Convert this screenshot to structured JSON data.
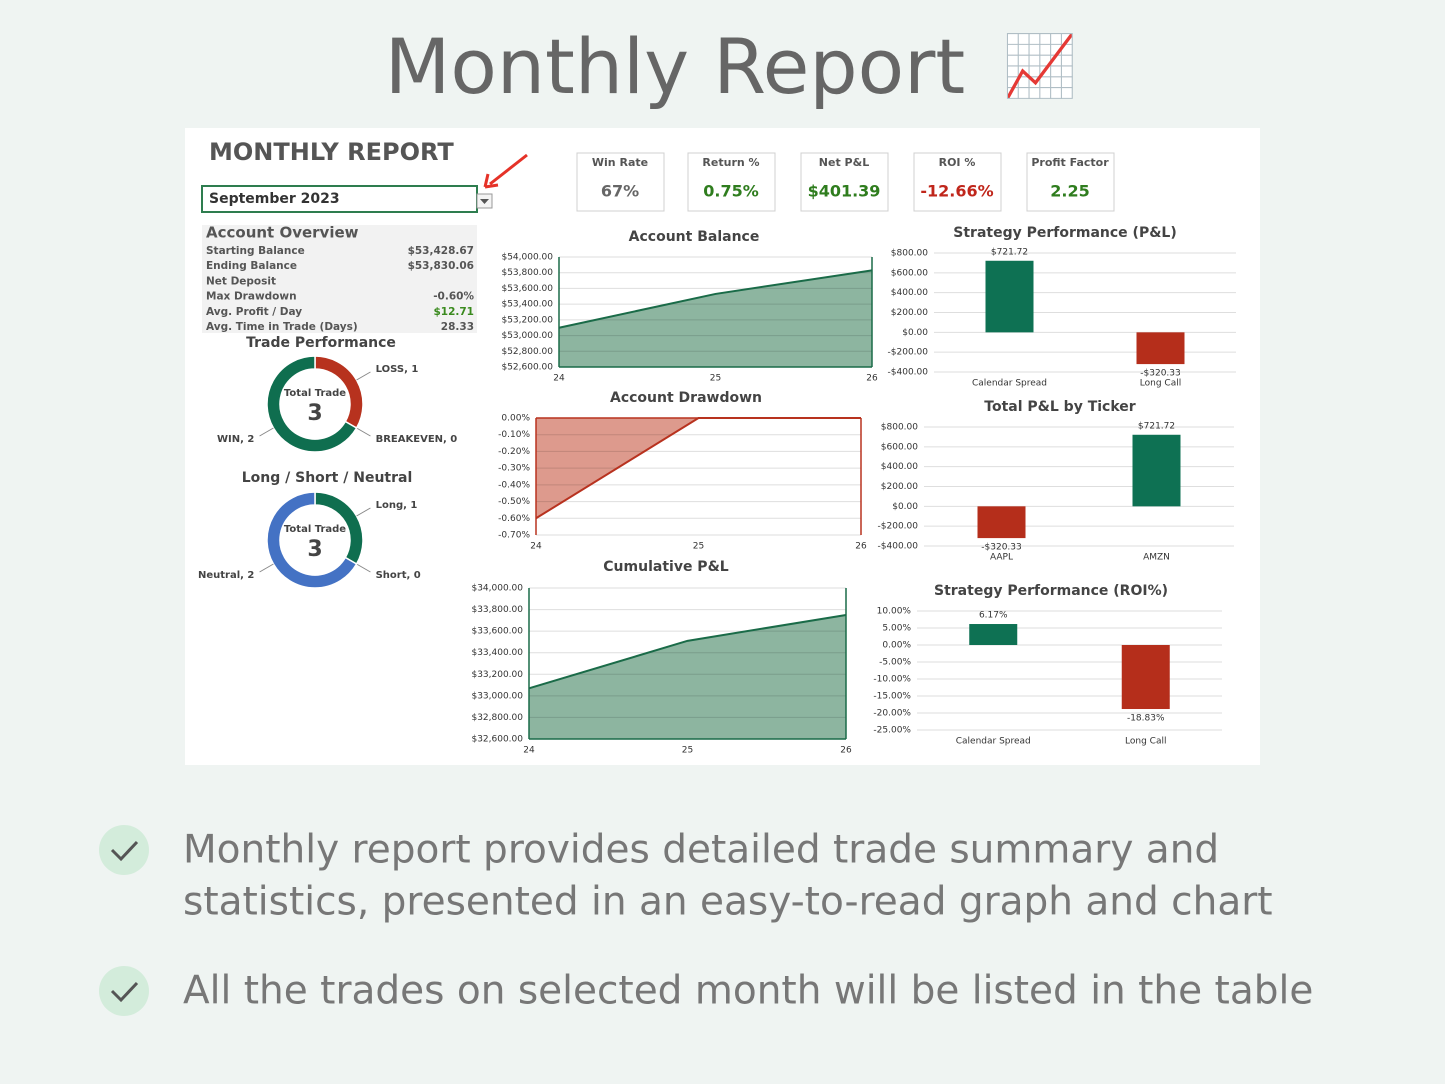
{
  "header": {
    "title": "Monthly Report",
    "icon": "📈"
  },
  "report": {
    "title": "MONTHLY REPORT",
    "month": "September 2023"
  },
  "kpis": [
    {
      "label": "Win Rate",
      "value": "67%",
      "color": "#666666"
    },
    {
      "label": "Return %",
      "value": "0.75%",
      "color": "#2f7d1e"
    },
    {
      "label": "Net P&L",
      "value": "$401.39",
      "color": "#2f7d1e"
    },
    {
      "label": "ROI %",
      "value": "-12.66%",
      "color": "#c0261b"
    },
    {
      "label": "Profit Factor",
      "value": "2.25",
      "color": "#2f7d1e"
    }
  ],
  "overview": {
    "title": "Account Overview",
    "rows": [
      {
        "label": "Starting Balance",
        "value": "$53,428.67"
      },
      {
        "label": "Ending Balance",
        "value": "$53,830.06"
      },
      {
        "label": "Net Deposit"
      },
      {
        "label": "Max Drawdown",
        "value": "-0.60%"
      },
      {
        "label": "Avg. Profit / Day",
        "value": "$12.71",
        "color": "#3a8a1e"
      },
      {
        "label": "Avg. Time in Trade (Days)",
        "value": "28.33"
      }
    ]
  },
  "chart_data": [
    {
      "type": "donut",
      "title": "Trade Performance",
      "center_label": "Total Trade",
      "total": 3,
      "categories": [
        "LOSS",
        "BREAKEVEN",
        "WIN"
      ],
      "values": [
        1,
        0,
        2
      ],
      "value_labels": [
        "LOSS, 1",
        "BREAKEVEN, 0",
        "WIN, 2"
      ],
      "colors": [
        "#b7321e",
        "#888888",
        "#0f6e4f"
      ]
    },
    {
      "type": "donut",
      "title": "Long / Short / Neutral",
      "center_label": "Total Trade",
      "total": 3,
      "categories": [
        "Long",
        "Short",
        "Neutral"
      ],
      "values": [
        1,
        0,
        2
      ],
      "value_labels": [
        "Long, 1",
        "Short, 0",
        "Neutral, 2"
      ],
      "colors": [
        "#0f6e4f",
        "#999999",
        "#4472c4"
      ]
    },
    {
      "type": "area",
      "title": "Account Balance",
      "x": [
        24,
        25,
        26
      ],
      "values": [
        53100,
        53530,
        53830
      ],
      "color": "#1a6b48",
      "fill": "#8db5a0",
      "xlim": [
        24,
        26
      ],
      "xticks": [
        24,
        25,
        26
      ],
      "ylim": [
        52600,
        54000
      ],
      "grid": true,
      "yticks": [
        {
          "value": 52600,
          "label": "$52,600.00"
        },
        {
          "value": 52800,
          "label": "$52,800.00"
        },
        {
          "value": 53000,
          "label": "$53,000.00"
        },
        {
          "value": 53200,
          "label": "$53,200.00"
        },
        {
          "value": 53400,
          "label": "$53,400.00"
        },
        {
          "value": 53600,
          "label": "$53,600.00"
        },
        {
          "value": 53800,
          "label": "$53,800.00"
        },
        {
          "value": 54000,
          "label": "$54,000.00"
        }
      ]
    },
    {
      "type": "area",
      "title": "Account Drawdown",
      "x": [
        24,
        25,
        26
      ],
      "values": [
        -0.6,
        0,
        0
      ],
      "color": "#b8321f",
      "fill": "#dd9a8d",
      "xlim": [
        24,
        26
      ],
      "xticks": [
        24,
        25,
        26
      ],
      "ylim": [
        -0.7,
        0
      ],
      "grid": true,
      "yticks": [
        {
          "value": 0,
          "label": "0.00%"
        },
        {
          "value": -0.1,
          "label": "-0.10%"
        },
        {
          "value": -0.2,
          "label": "-0.20%"
        },
        {
          "value": -0.3,
          "label": "-0.30%"
        },
        {
          "value": -0.4,
          "label": "-0.40%"
        },
        {
          "value": -0.5,
          "label": "-0.50%"
        },
        {
          "value": -0.6,
          "label": "-0.60%"
        },
        {
          "value": -0.7,
          "label": "-0.70%"
        }
      ]
    },
    {
      "type": "area",
      "title": "Cumulative P&L",
      "x": [
        24,
        25,
        26
      ],
      "values": [
        33070,
        33510,
        33750
      ],
      "color": "#1a6b48",
      "fill": "#8db5a0",
      "xlim": [
        24,
        26
      ],
      "xticks": [
        24,
        25,
        26
      ],
      "ylim": [
        32600,
        34000
      ],
      "grid": true,
      "yticks": [
        {
          "value": 32600,
          "label": "$32,600.00"
        },
        {
          "value": 32800,
          "label": "$32,800.00"
        },
        {
          "value": 33000,
          "label": "$33,000.00"
        },
        {
          "value": 33200,
          "label": "$33,200.00"
        },
        {
          "value": 33400,
          "label": "$33,400.00"
        },
        {
          "value": 33600,
          "label": "$33,600.00"
        },
        {
          "value": 33800,
          "label": "$33,800.00"
        },
        {
          "value": 34000,
          "label": "$34,000.00"
        }
      ]
    },
    {
      "type": "bar",
      "title": "Strategy Performance (P&L)",
      "categories": [
        "Calendar Spread",
        "Long Call"
      ],
      "values": [
        721.72,
        -320.33
      ],
      "value_labels": [
        "$721.72",
        "-$320.33"
      ],
      "colors": [
        "#0e7153",
        "#b52e1b"
      ],
      "ylim": [
        -400,
        800
      ],
      "grid": true,
      "yticks": [
        {
          "value": -400,
          "label": "-$400.00"
        },
        {
          "value": -200,
          "label": "-$200.00"
        },
        {
          "value": 0,
          "label": "$0.00"
        },
        {
          "value": 200,
          "label": "$200.00"
        },
        {
          "value": 400,
          "label": "$400.00"
        },
        {
          "value": 600,
          "label": "$600.00"
        },
        {
          "value": 800,
          "label": "$800.00"
        }
      ]
    },
    {
      "type": "bar",
      "title": "Total P&L by Ticker",
      "categories": [
        "AAPL",
        "AMZN"
      ],
      "values": [
        -320.33,
        721.72
      ],
      "value_labels": [
        "-$320.33",
        "$721.72"
      ],
      "colors": [
        "#b52e1b",
        "#0e7153"
      ],
      "ylim": [
        -400,
        800
      ],
      "grid": true,
      "yticks": [
        {
          "value": -400,
          "label": "-$400.00"
        },
        {
          "value": -200,
          "label": "-$200.00"
        },
        {
          "value": 0,
          "label": "$0.00"
        },
        {
          "value": 200,
          "label": "$200.00"
        },
        {
          "value": 400,
          "label": "$400.00"
        },
        {
          "value": 600,
          "label": "$600.00"
        },
        {
          "value": 800,
          "label": "$800.00"
        }
      ]
    },
    {
      "type": "bar",
      "title": "Strategy Performance (ROI%)",
      "categories": [
        "Calendar Spread",
        "Long Call"
      ],
      "values": [
        6.17,
        -18.83
      ],
      "value_labels": [
        "6.17%",
        "-18.83%"
      ],
      "colors": [
        "#0e7153",
        "#b52e1b"
      ],
      "ylim": [
        -25,
        10
      ],
      "grid": true,
      "yticks": [
        {
          "value": -25,
          "label": "-25.00%"
        },
        {
          "value": -20,
          "label": "-20.00%"
        },
        {
          "value": -15,
          "label": "-15.00%"
        },
        {
          "value": -10,
          "label": "-10.00%"
        },
        {
          "value": -5,
          "label": "-5.00%"
        },
        {
          "value": 0,
          "label": "0.00%"
        },
        {
          "value": 5,
          "label": "5.00%"
        },
        {
          "value": 10,
          "label": "10.00%"
        }
      ]
    }
  ],
  "bullets": [
    [
      "Monthly report provides detailed trade summary and",
      "statistics, presented in an easy-to-read graph and chart"
    ],
    [
      "All the trades on selected month will be listed in the table"
    ]
  ]
}
